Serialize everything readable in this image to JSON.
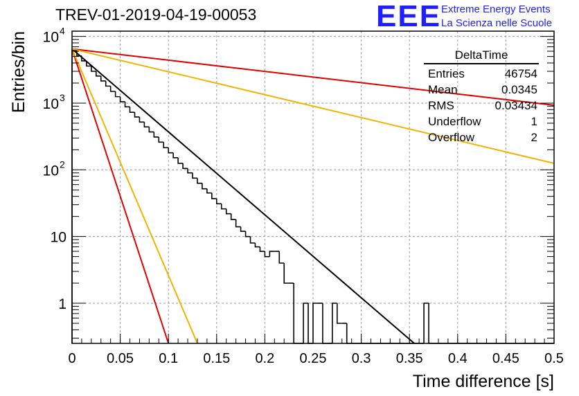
{
  "header": {
    "title": "TREV-01-2019-04-19-00053"
  },
  "logo": {
    "mark": "EEE",
    "line1": "Extreme Energy Events",
    "line2": "La Scienza nelle Scuole",
    "color": "#2020ff"
  },
  "stats": {
    "name": "DeltaTime",
    "rows": [
      {
        "label": "Entries",
        "value": "46754"
      },
      {
        "label": "Mean",
        "value": "0.0345"
      },
      {
        "label": "RMS",
        "value": "0.03434"
      },
      {
        "label": "Underflow",
        "value": "1"
      },
      {
        "label": "Overflow",
        "value": "2"
      }
    ]
  },
  "chart_data": {
    "type": "histogram",
    "xlabel": "Time difference [s]",
    "ylabel": "Entries/bin",
    "xlim": [
      0,
      0.5
    ],
    "ylim": [
      0.25,
      12000
    ],
    "yscale": "log",
    "grid": true,
    "bin_width": 0.005,
    "x_ticks": [
      "0",
      "0.05",
      "0.1",
      "0.15",
      "0.2",
      "0.25",
      "0.3",
      "0.35",
      "0.4",
      "0.45",
      "0.5"
    ],
    "y_ticks": [
      {
        "value": 1,
        "label": "1",
        "exp": ""
      },
      {
        "value": 10,
        "label": "10",
        "exp": ""
      },
      {
        "value": 100,
        "label": "10",
        "exp": "2"
      },
      {
        "value": 1000,
        "label": "10",
        "exp": "3"
      },
      {
        "value": 10000,
        "label": "10",
        "exp": "4"
      }
    ],
    "histogram": {
      "x_start": 0,
      "values": [
        6100,
        5100,
        4300,
        3600,
        3000,
        2550,
        2150,
        1800,
        1500,
        1250,
        1050,
        880,
        730,
        620,
        520,
        440,
        370,
        310,
        260,
        215,
        180,
        152,
        125,
        105,
        90,
        75,
        63,
        52,
        45,
        37,
        31,
        26,
        22,
        18,
        14,
        12,
        10,
        8,
        7,
        6,
        5,
        6,
        6,
        4,
        2,
        2,
        0,
        0,
        1,
        0,
        1,
        1,
        0,
        0,
        1,
        0.5,
        0.5,
        0,
        0,
        0,
        0,
        0,
        0,
        0,
        0,
        0,
        0,
        0,
        0,
        0,
        0,
        0,
        0,
        1,
        0,
        0,
        0,
        0,
        0,
        0,
        0,
        0,
        0,
        0,
        0,
        0,
        0,
        0,
        0,
        0,
        0,
        0,
        0,
        0,
        0,
        0,
        0,
        0,
        0,
        0
      ],
      "color": "#000000"
    },
    "lines": [
      {
        "x": [
          0,
          0.355
        ],
        "y": [
          6500,
          0.25
        ],
        "color": "#000000"
      },
      {
        "x": [
          0,
          0.5
        ],
        "y": [
          6500,
          930
        ],
        "color": "#e00000"
      },
      {
        "x": [
          0,
          0.5
        ],
        "y": [
          6500,
          125
        ],
        "color": "#f0b400"
      },
      {
        "x": [
          0,
          0.1
        ],
        "y": [
          6500,
          0.25
        ],
        "color": "#e00000"
      },
      {
        "x": [
          0,
          0.13
        ],
        "y": [
          6500,
          0.25
        ],
        "color": "#f0b400"
      }
    ]
  }
}
